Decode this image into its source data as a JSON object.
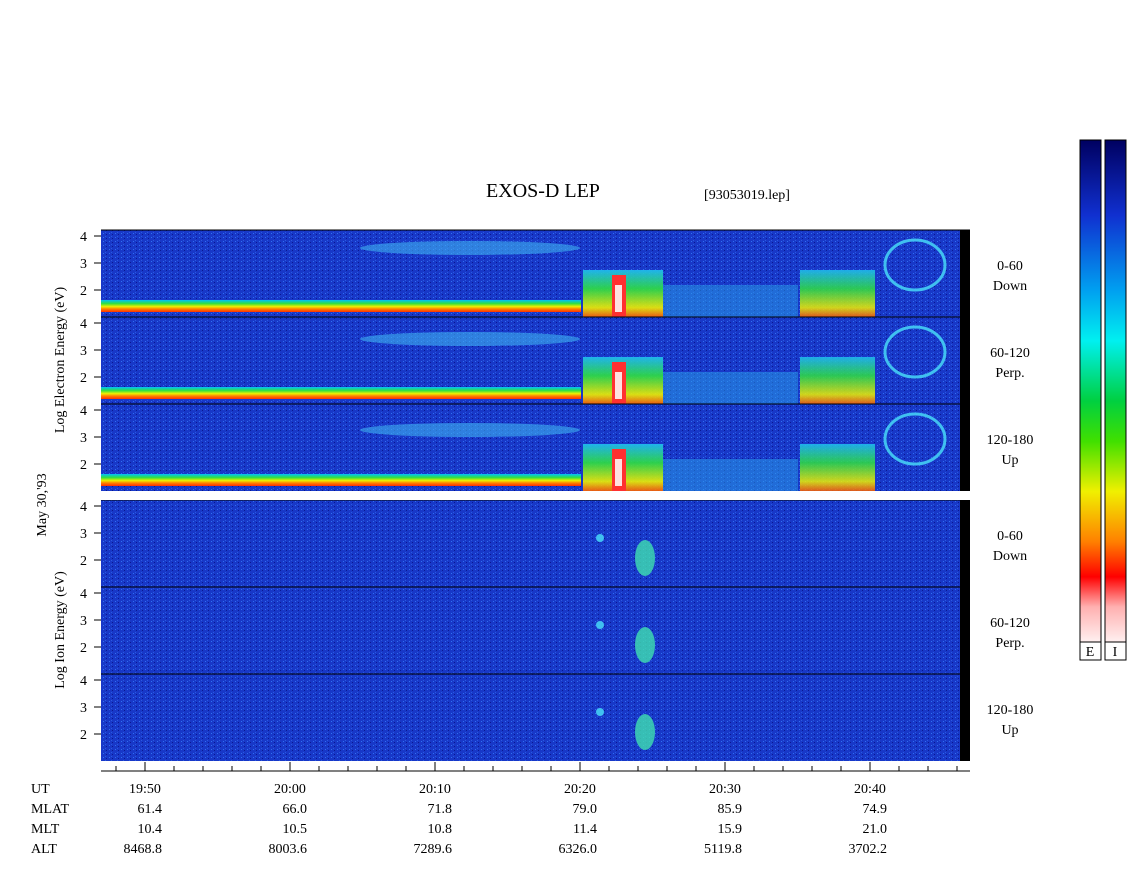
{
  "title": "EXOS-D LEP",
  "file": "[93053019.lep]",
  "date": "May 30,'93",
  "electron_axis_label": "Log Electron Energy (eV)",
  "ion_axis_label": "Log Ion Energy (eV)",
  "electron_panels": [
    {
      "angle": "0-60",
      "direction": "Down",
      "yticks": [
        4,
        3,
        2
      ]
    },
    {
      "angle": "60-120",
      "direction": "Perp.",
      "yticks": [
        4,
        3,
        2
      ]
    },
    {
      "angle": "120-180",
      "direction": "Up",
      "yticks": [
        4,
        3,
        2
      ]
    }
  ],
  "ion_panels": [
    {
      "angle": "0-60",
      "direction": "Down",
      "yticks": [
        4,
        3,
        2
      ]
    },
    {
      "angle": "60-120",
      "direction": "Perp.",
      "yticks": [
        4,
        3,
        2
      ]
    },
    {
      "angle": "120-180",
      "direction": "Up",
      "yticks": [
        4,
        3,
        2
      ]
    }
  ],
  "time_label": "UT",
  "time_ticks": [
    "19:50",
    "20:00",
    "20:10",
    "20:20",
    "20:30",
    "20:40"
  ],
  "rows": [
    {
      "label": "MLAT",
      "values": [
        "61.4",
        "66.0",
        "71.8",
        "79.0",
        "85.9",
        "74.9"
      ]
    },
    {
      "label": "MLT",
      "values": [
        "10.4",
        "10.5",
        "10.8",
        "11.4",
        "15.9",
        "21.0"
      ]
    },
    {
      "label": "ALT",
      "values": [
        "8468.8",
        "8003.6",
        "7289.6",
        "6326.0",
        "5119.8",
        "3702.2"
      ]
    }
  ],
  "colorbar_labels": [
    "E",
    "I"
  ]
}
